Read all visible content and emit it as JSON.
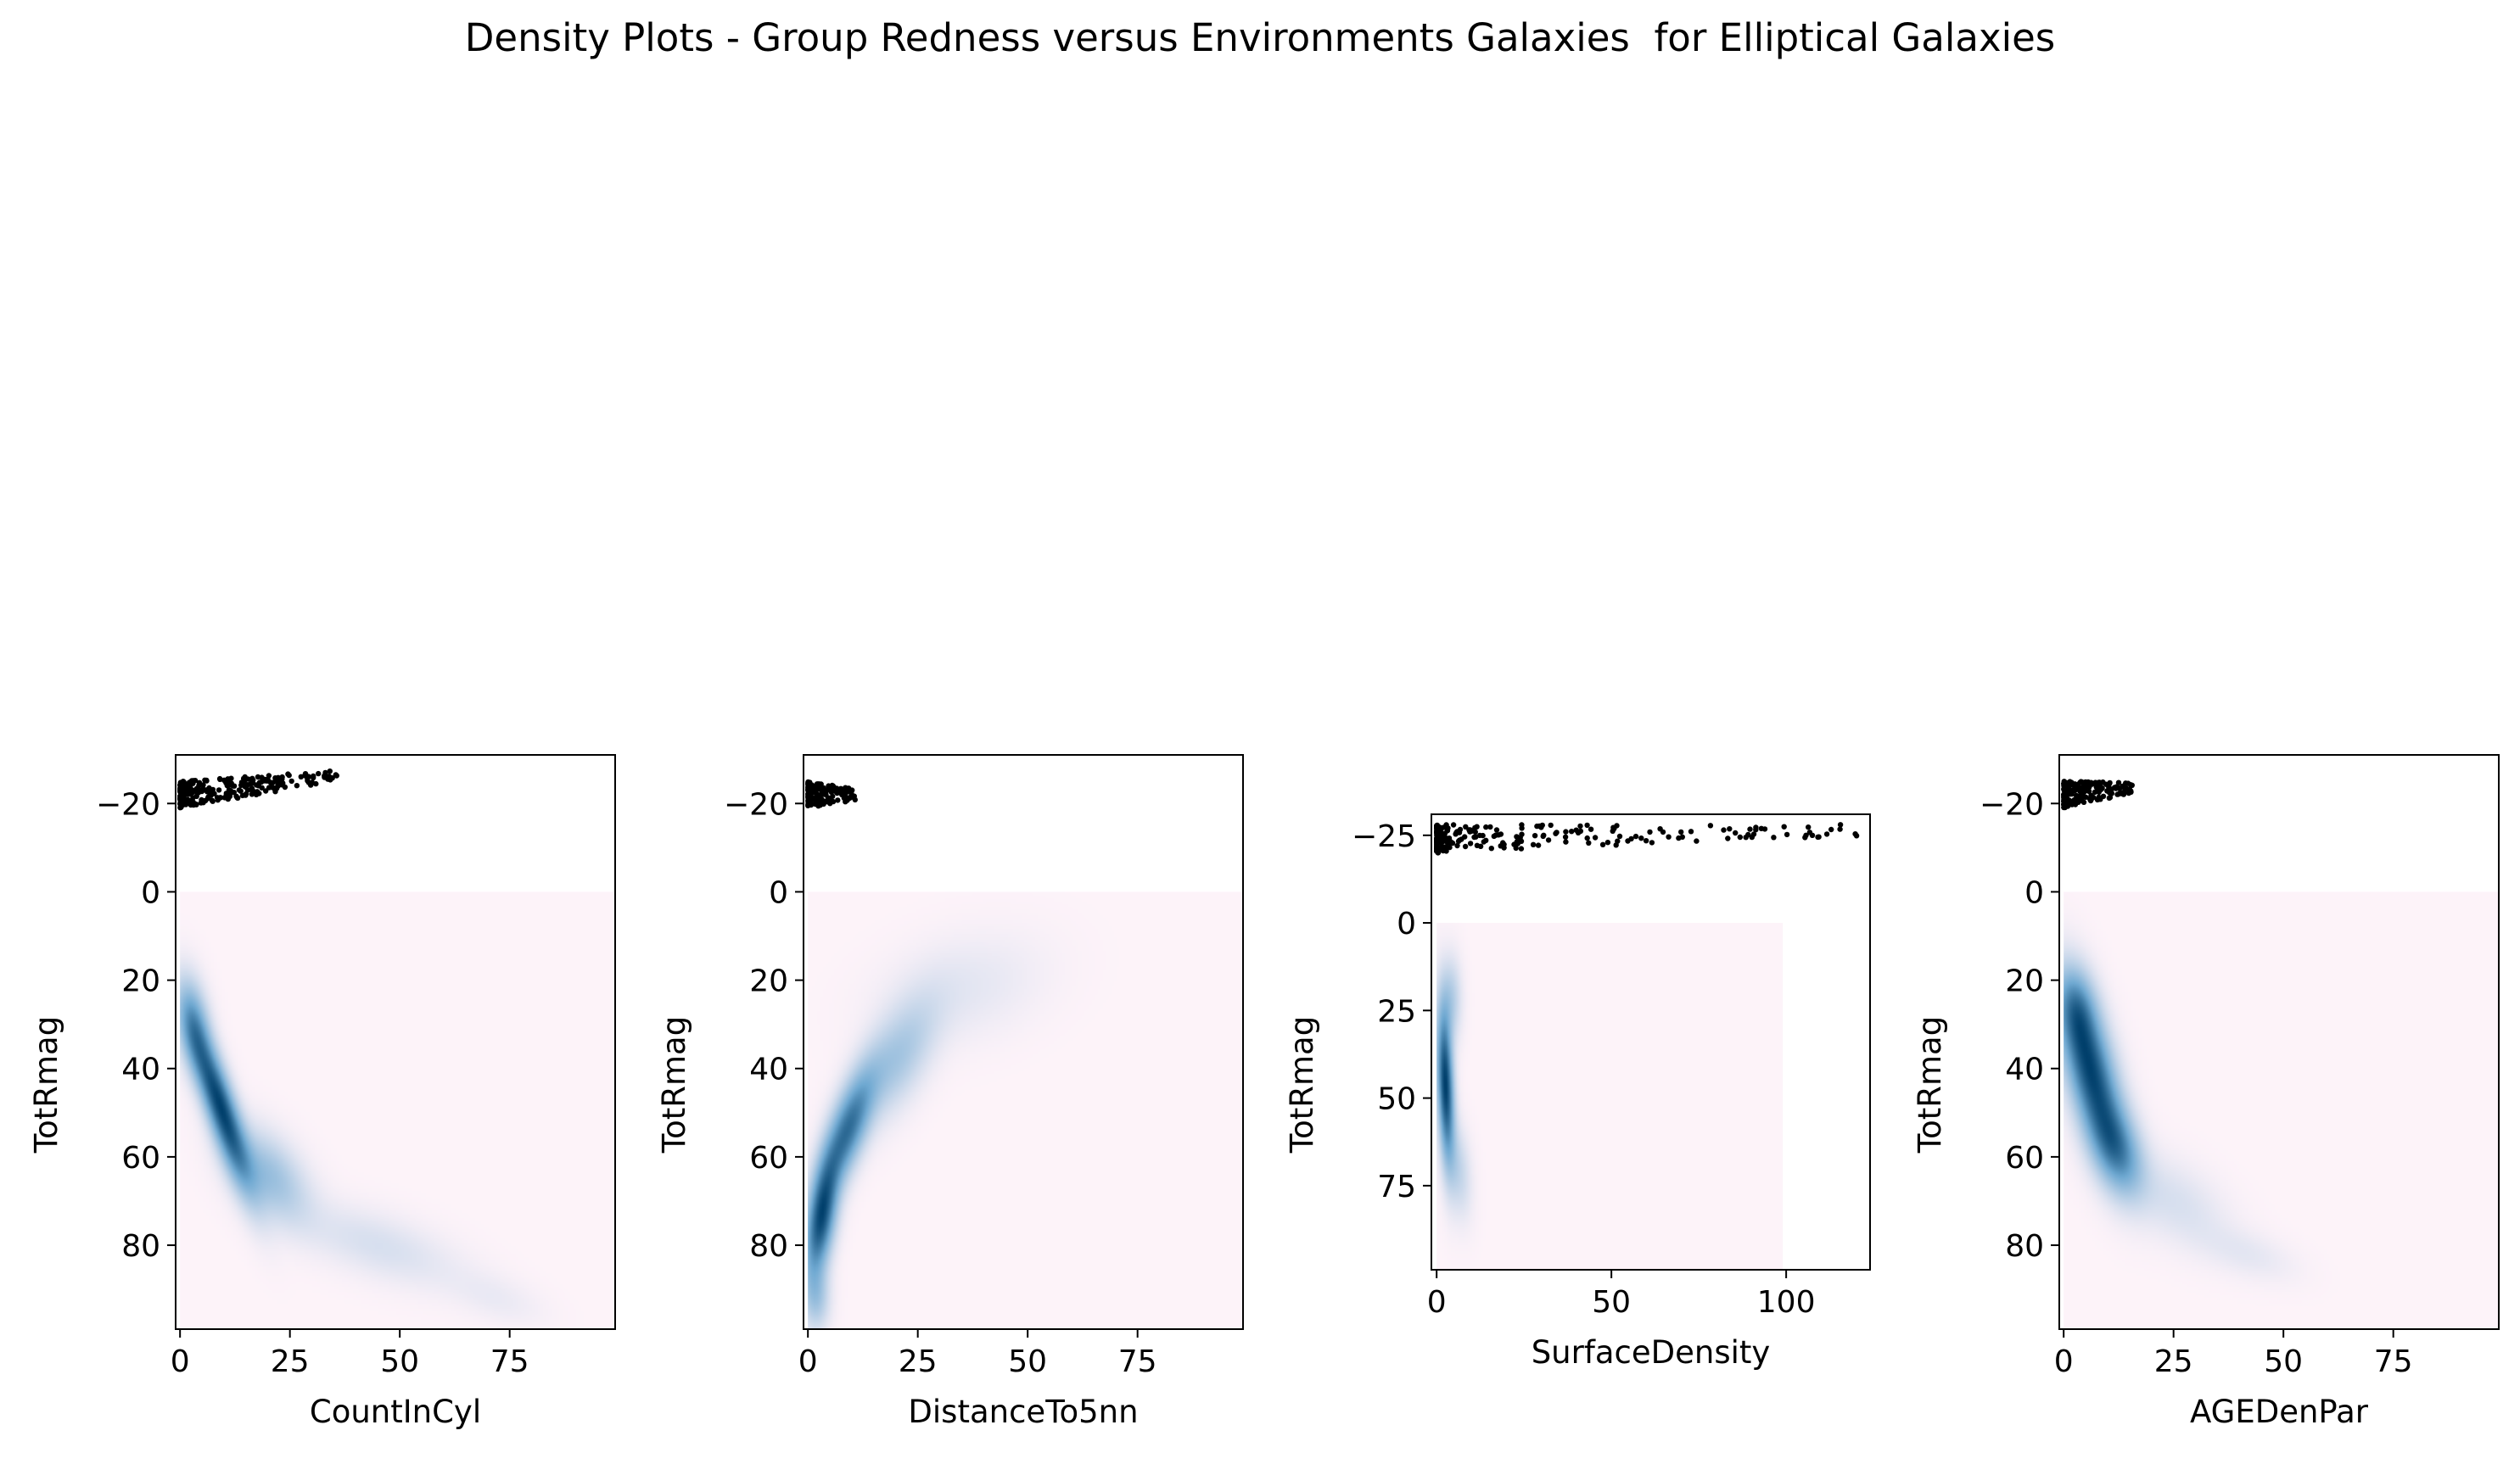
{
  "figure": {
    "title": "Density Plots - Group Redness versus Environments Galaxies  for Elliptical Galaxies"
  },
  "colors": {
    "density_low": "#fdf3f9",
    "density_mid": "#6fa9d2",
    "density_high": "#003f6b",
    "points": "#000000"
  },
  "chart_data": [
    {
      "type": "heatmap",
      "overlay": "scatter",
      "xlabel": "CountInCyl",
      "ylabel": "TotRmag",
      "xlim": [
        -1,
        99
      ],
      "ylim": [
        99,
        -31
      ],
      "xticks": [
        0,
        25,
        50,
        75
      ],
      "yticks": [
        -20,
        0,
        20,
        40,
        60,
        80
      ],
      "ytick_labels": [
        "−20",
        "0",
        "20",
        "40",
        "60",
        "80"
      ],
      "density_extent": {
        "x": [
          0,
          99
        ],
        "y": [
          0,
          99
        ]
      },
      "density_peaks": [
        {
          "x": 9,
          "y": 48,
          "sx": 4.5,
          "sy": 12,
          "rho": 0.85,
          "w": 1.0
        },
        {
          "x": 3,
          "y": 30,
          "sx": 2.5,
          "sy": 7,
          "rho": 0.3,
          "w": 0.45
        },
        {
          "x": 20,
          "y": 64,
          "sx": 6,
          "sy": 7,
          "rho": 0.5,
          "w": 0.35
        },
        {
          "x": 45,
          "y": 80,
          "sx": 12,
          "sy": 6,
          "rho": 0.6,
          "w": 0.12
        },
        {
          "x": 72,
          "y": 92,
          "sx": 7,
          "sy": 4,
          "rho": 0.5,
          "w": 0.05
        }
      ],
      "scatter": {
        "x_range": [
          0,
          36
        ],
        "y_range": [
          -25,
          -19
        ],
        "slope": -0.12,
        "n": 260
      }
    },
    {
      "type": "heatmap",
      "overlay": "scatter",
      "xlabel": "DistanceTo5nn",
      "ylabel": "TotRmag",
      "xlim": [
        -1,
        99
      ],
      "ylim": [
        99,
        -31
      ],
      "xticks": [
        0,
        25,
        50,
        75
      ],
      "yticks": [
        -20,
        0,
        20,
        40,
        60,
        80
      ],
      "ytick_labels": [
        "−20",
        "0",
        "20",
        "40",
        "60",
        "80"
      ],
      "density_extent": {
        "x": [
          0,
          99
        ],
        "y": [
          0,
          99
        ]
      },
      "density_peaks": [
        {
          "x": 3,
          "y": 74,
          "sx": 2.5,
          "sy": 9,
          "rho": -0.5,
          "w": 1.0
        },
        {
          "x": 9,
          "y": 54,
          "sx": 4,
          "sy": 9,
          "rho": -0.7,
          "w": 0.8
        },
        {
          "x": 20,
          "y": 38,
          "sx": 6,
          "sy": 9,
          "rho": -0.6,
          "w": 0.32
        },
        {
          "x": 35,
          "y": 22,
          "sx": 12,
          "sy": 8,
          "rho": -0.3,
          "w": 0.08
        },
        {
          "x": 2,
          "y": 92,
          "sx": 2,
          "sy": 5,
          "rho": 0,
          "w": 0.3
        }
      ],
      "scatter": {
        "x_range": [
          0,
          11
        ],
        "y_range": [
          -25,
          -19
        ],
        "slope": 0,
        "n": 150
      }
    },
    {
      "type": "heatmap",
      "overlay": "scatter",
      "xlabel": "SurfaceDensity",
      "ylabel": "TotRmag",
      "xlim": [
        -1.5,
        124
      ],
      "ylim": [
        99,
        -31
      ],
      "xticks": [
        0,
        50,
        100
      ],
      "yticks": [
        -25,
        0,
        25,
        50,
        75
      ],
      "ytick_labels": [
        "−25",
        "0",
        "25",
        "50",
        "75"
      ],
      "density_extent": {
        "x": [
          0,
          99
        ],
        "y": [
          0,
          99
        ]
      },
      "density_peaks": [
        {
          "x": 2.5,
          "y": 46,
          "sx": 1.6,
          "sy": 14,
          "rho": 0.3,
          "w": 1.0
        },
        {
          "x": 6,
          "y": 70,
          "sx": 2.5,
          "sy": 9,
          "rho": 0.3,
          "w": 0.2
        },
        {
          "x": 4,
          "y": 22,
          "sx": 2,
          "sy": 8,
          "rho": 0,
          "w": 0.25
        }
      ],
      "scatter": {
        "x_range": [
          0,
          122
        ],
        "y_range": [
          -28,
          -20
        ],
        "slope": -0.02,
        "n": 230
      }
    },
    {
      "type": "heatmap",
      "overlay": "scatter",
      "xlabel": "AGEDenPar",
      "ylabel": "TotRmag",
      "xlim": [
        -1,
        99
      ],
      "ylim": [
        99,
        -31
      ],
      "xticks": [
        0,
        25,
        50,
        75
      ],
      "yticks": [
        -20,
        0,
        20,
        40,
        60,
        80
      ],
      "ytick_labels": [
        "−20",
        "0",
        "20",
        "40",
        "60",
        "80"
      ],
      "density_extent": {
        "x": [
          0,
          99
        ],
        "y": [
          0,
          99
        ]
      },
      "density_peaks": [
        {
          "x": 6,
          "y": 40,
          "sx": 4.5,
          "sy": 12,
          "rho": 0.6,
          "w": 1.0
        },
        {
          "x": 12,
          "y": 58,
          "sx": 4,
          "sy": 7,
          "rho": 0.4,
          "w": 0.6
        },
        {
          "x": 3,
          "y": 26,
          "sx": 3,
          "sy": 6,
          "rho": 0.2,
          "w": 0.4
        },
        {
          "x": 25,
          "y": 70,
          "sx": 8,
          "sy": 7,
          "rho": 0.5,
          "w": 0.12
        },
        {
          "x": 42,
          "y": 82,
          "sx": 7,
          "sy": 4,
          "rho": 0.5,
          "w": 0.07
        }
      ],
      "scatter": {
        "x_range": [
          0,
          16
        ],
        "y_range": [
          -25,
          -19
        ],
        "slope": -0.1,
        "n": 200
      }
    }
  ]
}
